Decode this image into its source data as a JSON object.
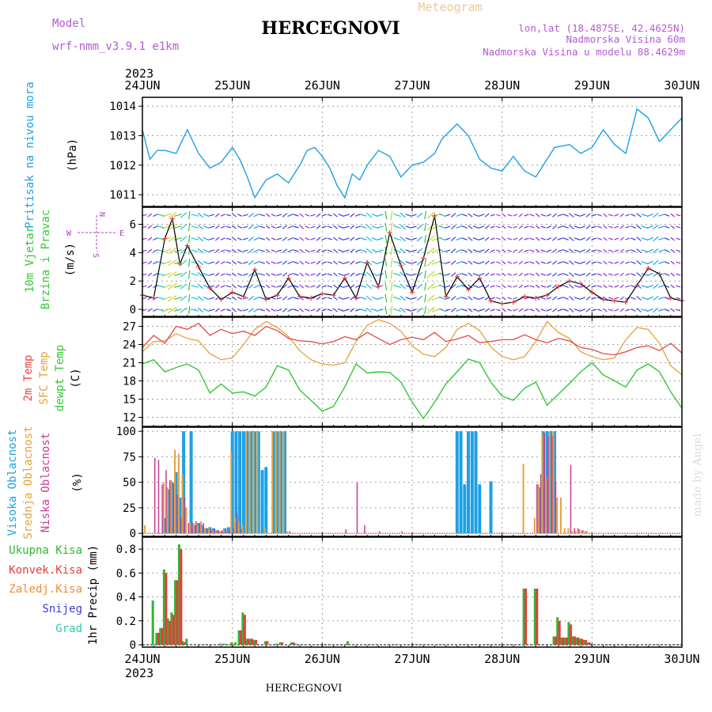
{
  "header": {
    "model_label": "Model",
    "model_value": "wrf-nmm_v3.9.1 e1km",
    "title": "HERCEGNOVI",
    "subtitle": "Meteogram",
    "lonlat": "lon,lat (18.4875E, 42.4625N)",
    "altitude": "Nadmorska Visina 60m",
    "model_altitude": "Nadmorska Visina u modelu 88.4629m",
    "year": "2023",
    "footer_title": "HERCEGNOVI",
    "credit": "made by Angel"
  },
  "colors": {
    "pressure": "#1ea0e6",
    "t2m": "#e64646",
    "sfc": "#e6a03c",
    "dewpt": "#32c832",
    "high_cloud": "#1ea0e6",
    "mid_cloud": "#e6a03c",
    "low_cloud": "#c83c96",
    "total_precip": "#32b432",
    "conv_precip": "#e63c3c",
    "frozen_precip": "#f08c32",
    "snow": "#3c3cdc",
    "graupel": "#32c8b4",
    "wind_dir": "#b43cc8"
  },
  "chart_data": [
    {
      "type": "line",
      "panel": "pressure",
      "ylabel": [
        "Pritisak na nivou mora",
        "(hPa)"
      ],
      "ylim": [
        1010.6,
        1014.3
      ],
      "yticks": [
        "1011",
        "1012",
        "1013",
        "1014"
      ],
      "xticks": [
        "24JUN",
        "25JUN",
        "26JUN",
        "27JUN",
        "28JUN",
        "29JUN",
        "30JUN"
      ],
      "x_hours": [
        0,
        2,
        4,
        6,
        9,
        12,
        15,
        18,
        21,
        24,
        26,
        28,
        30,
        33,
        36,
        39,
        42,
        44,
        46,
        48,
        50,
        52,
        54,
        56,
        58,
        60,
        63,
        66,
        69,
        72,
        75,
        78,
        80,
        84,
        87,
        90,
        93,
        96,
        99,
        102,
        105,
        108,
        110,
        114,
        117,
        120,
        123,
        126,
        129,
        132,
        135,
        138,
        141,
        144
      ],
      "series": [
        {
          "name": "Pritisak na nivou mora",
          "values": [
            1013.2,
            1012.2,
            1012.5,
            1012.5,
            1012.4,
            1013.2,
            1012.4,
            1011.9,
            1012.1,
            1012.6,
            1012.2,
            1011.6,
            1010.9,
            1011.5,
            1011.7,
            1011.4,
            1012.0,
            1012.5,
            1012.6,
            1012.3,
            1011.9,
            1011.3,
            1010.9,
            1011.7,
            1011.5,
            1012.0,
            1012.5,
            1012.3,
            1011.6,
            1012.0,
            1012.1,
            1012.4,
            1012.9,
            1013.4,
            1013.0,
            1012.2,
            1011.9,
            1011.8,
            1012.3,
            1011.8,
            1011.6,
            1012.2,
            1012.6,
            1012.7,
            1012.4,
            1012.6,
            1013.2,
            1012.7,
            1012.4,
            1013.9,
            1013.6,
            1012.8,
            1013.2,
            1013.6
          ]
        }
      ]
    },
    {
      "type": "line",
      "panel": "wind",
      "ylabel": [
        "10m Vjetar",
        "Brzina i Pravac",
        "(m/s)"
      ],
      "compass": [
        "N",
        "W",
        "E",
        "S"
      ],
      "ylim": [
        -0.5,
        7.2
      ],
      "yticks": [
        "0",
        "2",
        "4",
        "6"
      ],
      "xticks": [
        "24JUN",
        "25JUN",
        "26JUN",
        "27JUN",
        "28JUN",
        "29JUN",
        "30JUN"
      ],
      "x_hours": [
        0,
        3,
        6,
        8,
        10,
        12,
        15,
        18,
        21,
        24,
        27,
        30,
        33,
        36,
        39,
        42,
        45,
        48,
        51,
        54,
        57,
        60,
        63,
        66,
        69,
        72,
        75,
        78,
        81,
        84,
        87,
        90,
        93,
        96,
        99,
        102,
        105,
        108,
        111,
        114,
        117,
        120,
        123,
        126,
        129,
        132,
        135,
        138,
        141,
        144
      ],
      "series": [
        {
          "name": "wind speed",
          "values": [
            1.0,
            0.8,
            5.0,
            6.4,
            3.2,
            4.5,
            3.0,
            1.5,
            0.7,
            1.2,
            0.9,
            2.8,
            0.7,
            1.0,
            2.2,
            0.9,
            0.8,
            1.1,
            1.0,
            2.2,
            0.8,
            3.3,
            1.6,
            5.4,
            3.1,
            1.2,
            3.6,
            6.6,
            0.9,
            2.3,
            1.4,
            2.2,
            0.6,
            0.4,
            0.5,
            0.9,
            0.8,
            1.0,
            1.6,
            2.0,
            1.8,
            1.2,
            0.7,
            0.6,
            0.5,
            1.7,
            2.9,
            2.5,
            0.8,
            0.6
          ]
        }
      ]
    },
    {
      "type": "line",
      "panel": "temperature",
      "ylabel": [
        "2m Temp",
        "SFC Temp",
        "dewpt Temp",
        "(C)"
      ],
      "ylim": [
        10.5,
        28.5
      ],
      "yticks": [
        "12",
        "15",
        "18",
        "21",
        "24",
        "27"
      ],
      "xticks": [
        "24JUN",
        "25JUN",
        "26JUN",
        "27JUN",
        "28JUN",
        "29JUN",
        "30JUN"
      ],
      "x_hours": [
        0,
        3,
        6,
        9,
        12,
        15,
        18,
        21,
        24,
        27,
        30,
        33,
        36,
        39,
        42,
        45,
        48,
        51,
        54,
        57,
        60,
        63,
        66,
        69,
        72,
        75,
        78,
        81,
        84,
        87,
        90,
        93,
        96,
        99,
        102,
        105,
        108,
        111,
        114,
        117,
        120,
        123,
        126,
        129,
        132,
        135,
        138,
        141,
        144
      ],
      "series": [
        {
          "name": "2m Temp",
          "values": [
            23.5,
            25.5,
            24.2,
            27.0,
            26.5,
            27.5,
            25.5,
            26.5,
            25.8,
            26.2,
            25.5,
            27.0,
            26.3,
            25.0,
            24.6,
            24.5,
            24.1,
            24.5,
            25.3,
            24.8,
            26.0,
            25.0,
            24.0,
            24.8,
            25.2,
            24.8,
            26.0,
            24.5,
            24.9,
            25.5,
            24.3,
            24.5,
            24.8,
            24.8,
            25.6,
            24.8,
            24.3,
            25.0,
            24.6,
            23.5,
            23.2,
            22.5,
            22.3,
            22.8,
            23.5,
            23.8,
            23.0,
            24.2,
            22.6
          ]
        },
        {
          "name": "SFC Temp",
          "values": [
            22.8,
            24.5,
            24.6,
            25.8,
            25.0,
            24.6,
            22.5,
            21.5,
            21.8,
            24.0,
            26.5,
            27.8,
            26.8,
            25.3,
            23.0,
            21.5,
            20.8,
            20.6,
            21.0,
            24.5,
            27.2,
            28.1,
            27.5,
            26.2,
            23.8,
            22.4,
            22.0,
            23.5,
            26.5,
            27.5,
            26.3,
            23.6,
            22.0,
            21.5,
            22.0,
            24.5,
            27.8,
            26.0,
            25.0,
            22.8,
            22.0,
            21.5,
            21.8,
            24.8,
            26.8,
            26.5,
            24.2,
            20.5,
            19.0
          ]
        },
        {
          "name": "dewpt Temp",
          "values": [
            20.8,
            21.5,
            19.5,
            20.2,
            20.8,
            19.8,
            16.0,
            17.5,
            16.0,
            16.2,
            15.5,
            17.0,
            20.5,
            19.8,
            16.5,
            14.8,
            13.0,
            13.8,
            17.0,
            20.8,
            19.3,
            19.5,
            19.4,
            17.8,
            14.5,
            11.8,
            14.5,
            17.5,
            19.5,
            21.6,
            21.0,
            17.8,
            15.5,
            14.8,
            16.8,
            17.8,
            14.0,
            15.8,
            17.6,
            19.5,
            21.0,
            19.0,
            18.0,
            17.0,
            19.8,
            20.8,
            19.5,
            16.2,
            13.5
          ]
        }
      ]
    },
    {
      "type": "bar",
      "panel": "cloud",
      "ylabel": [
        "Visoka Oblacnost",
        "Srednja Oblacnost",
        "Niska Oblacnost",
        "(%)"
      ],
      "ylim": [
        -3,
        104
      ],
      "yticks": [
        "0",
        "25",
        "50",
        "75",
        "100"
      ],
      "xticks": [
        "24JUN",
        "25JUN",
        "26JUN",
        "27JUN",
        "28JUN",
        "29JUN",
        "30JUN"
      ],
      "x_hours": [
        1,
        2,
        3,
        4,
        5,
        6,
        7,
        8,
        9,
        10,
        11,
        12,
        13,
        14,
        15,
        16,
        17,
        18,
        19,
        20,
        21,
        22,
        23,
        24,
        25,
        26,
        27,
        28,
        29,
        30,
        31,
        32,
        33,
        34,
        35,
        36,
        37,
        38,
        39,
        40,
        41,
        42,
        43,
        54,
        57,
        59,
        63,
        69,
        84,
        85,
        86,
        87,
        88,
        89,
        90,
        91,
        92,
        93,
        94,
        102,
        105,
        106,
        107,
        108,
        109,
        110,
        111,
        112,
        113,
        114,
        115,
        116,
        117,
        118,
        119
      ],
      "series": [
        {
          "name": "Visoka Oblacnost",
          "values": [
            0,
            0,
            0,
            0,
            0,
            15,
            43,
            50,
            60,
            35,
            100,
            0,
            100,
            8,
            10,
            8,
            5,
            6,
            5,
            3,
            2,
            5,
            6,
            100,
            100,
            100,
            100,
            100,
            100,
            100,
            100,
            62,
            65,
            0,
            100,
            100,
            100,
            100,
            0,
            0,
            0,
            0,
            0,
            0,
            0,
            0,
            0,
            0,
            100,
            100,
            48,
            100,
            100,
            100,
            48,
            0,
            0,
            51,
            0,
            0,
            0,
            45,
            100,
            100,
            100,
            100,
            0,
            0,
            0,
            0,
            0,
            0,
            0,
            0,
            0
          ]
        },
        {
          "name": "Srednja Oblacnost",
          "values": [
            8,
            0,
            0,
            0,
            0,
            50,
            45,
            52,
            82,
            78,
            58,
            25,
            10,
            10,
            8,
            12,
            5,
            5,
            3,
            2,
            2,
            4,
            0,
            80,
            15,
            12,
            8,
            100,
            100,
            100,
            100,
            0,
            5,
            0,
            100,
            100,
            100,
            100,
            2,
            0,
            0,
            0,
            0,
            0,
            0,
            0,
            0,
            0,
            0,
            0,
            0,
            0,
            0,
            0,
            0,
            0,
            0,
            0,
            0,
            68,
            15,
            48,
            98,
            55,
            100,
            100,
            35,
            35,
            5,
            5,
            2,
            2,
            4,
            3,
            2
          ]
        },
        {
          "name": "Niska Oblacnost",
          "values": [
            0,
            0,
            74,
            72,
            48,
            62,
            52,
            48,
            38,
            15,
            35,
            10,
            10,
            12,
            10,
            10,
            5,
            4,
            4,
            3,
            3,
            4,
            2,
            5,
            20,
            4,
            0,
            0,
            0,
            0,
            0,
            0,
            0,
            0,
            0,
            0,
            0,
            0,
            2,
            0,
            0,
            0,
            0,
            4,
            50,
            8,
            2,
            2,
            0,
            0,
            0,
            0,
            0,
            0,
            0,
            0,
            0,
            0,
            0,
            0,
            48,
            58,
            98,
            95,
            95,
            50,
            0,
            0,
            0,
            67,
            5,
            5,
            3,
            2,
            0
          ]
        }
      ]
    },
    {
      "type": "bar",
      "panel": "precip",
      "ylabel": [
        "Ukupna Kisa",
        "Konvek.Kisa",
        "Zaledj.Kisa",
        "Snijeg",
        "Grad",
        "1hr Precip (mm)"
      ],
      "ylim": [
        -0.02,
        0.9
      ],
      "yticks": [
        "0",
        "0.2",
        "0.4",
        "0.6",
        "0.8"
      ],
      "xticks": [
        "24JUN",
        "25JUN",
        "26JUN",
        "27JUN",
        "28JUN",
        "29JUN",
        "30JUN"
      ],
      "x_hours": [
        3,
        4,
        5,
        6,
        7,
        8,
        9,
        10,
        11,
        12,
        21,
        22,
        24,
        25,
        26,
        27,
        28,
        29,
        30,
        33,
        36,
        37,
        40,
        41,
        55,
        102,
        105,
        110,
        111,
        112,
        113,
        114,
        115,
        116,
        117,
        118,
        119
      ],
      "series": [
        {
          "name": "Ukupna Kisa",
          "values": [
            0.37,
            0.1,
            0.14,
            0.63,
            0.22,
            0.27,
            0.54,
            0.84,
            0.03,
            0.05,
            0.01,
            0.01,
            0.02,
            0.02,
            0.12,
            0.27,
            0.05,
            0.05,
            0.04,
            0.03,
            0.01,
            0.02,
            0.02,
            0.01,
            0.03,
            0.47,
            0.47,
            0.07,
            0.23,
            0.06,
            0.06,
            0.19,
            0.07,
            0.06,
            0.05,
            0.04,
            0.02
          ]
        },
        {
          "name": "Konvek.Kisa",
          "values": [
            0,
            0.1,
            0.14,
            0.6,
            0.2,
            0.25,
            0.54,
            0.8,
            0.02,
            0,
            0,
            0,
            0,
            0,
            0.12,
            0.25,
            0.05,
            0.05,
            0.04,
            0.03,
            0,
            0.02,
            0.02,
            0,
            0,
            0.47,
            0.47,
            0.07,
            0.2,
            0.06,
            0.06,
            0.17,
            0.07,
            0.06,
            0.05,
            0.04,
            0.02
          ]
        }
      ]
    }
  ]
}
